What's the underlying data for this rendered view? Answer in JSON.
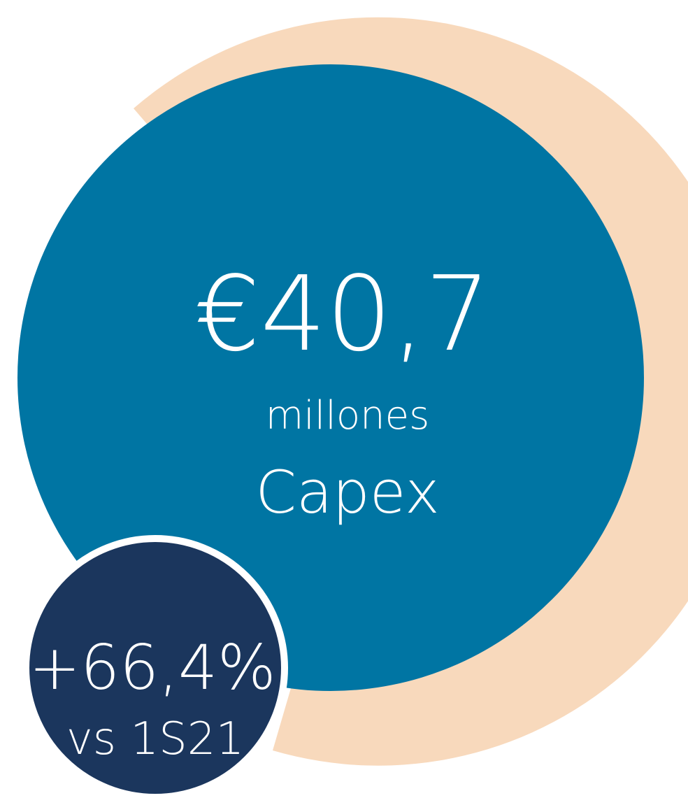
{
  "headline": {
    "value": "€40,7",
    "unit": "millones",
    "label": "Capex"
  },
  "badge": {
    "change": "+66,4%",
    "comparison": "vs 1S21"
  }
}
